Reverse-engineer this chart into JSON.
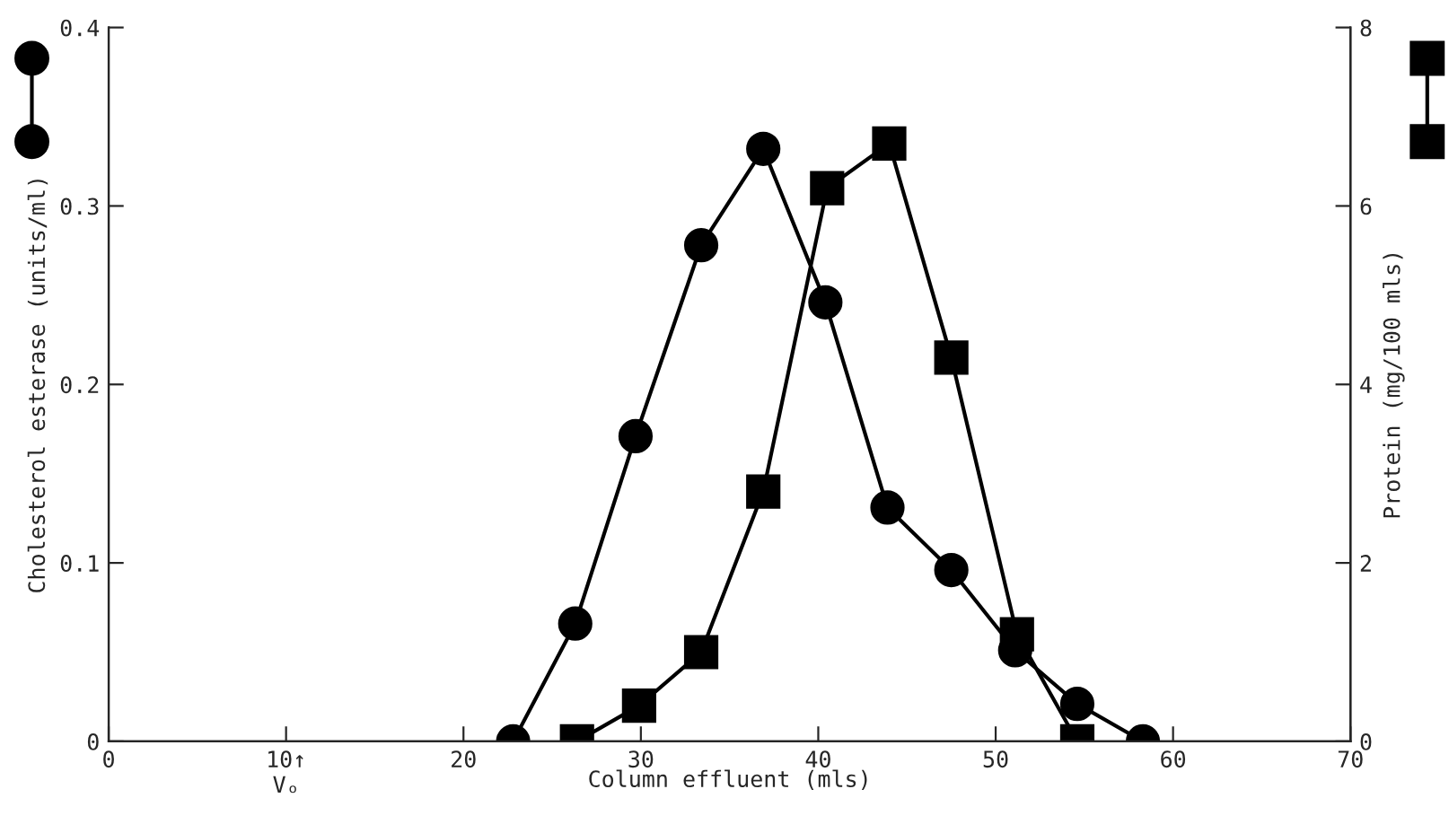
{
  "chart_data": {
    "type": "line",
    "xlabel": "Column effluent (mls)",
    "ylabel": "Cholesterol esterase (units/ml)",
    "y2label": "Protein (mg/100 mls)",
    "series": [
      {
        "color": "#000000",
        "marker": "circle",
        "x": [
          22.8,
          26.3,
          29.7,
          33.4,
          36.9,
          40.4,
          43.9,
          47.5,
          51.1,
          54.6,
          58.3
        ],
        "values": [
          0,
          0.066,
          0.171,
          0.278,
          0.332,
          0.246,
          0.131,
          0.096,
          0.051,
          0.021,
          0
        ]
      },
      {
        "color": "#000000",
        "marker": "square",
        "axis": "y2",
        "x": [
          26.4,
          29.9,
          33.4,
          36.9,
          40.5,
          44.0,
          47.5,
          51.2,
          54.6
        ],
        "values": [
          0,
          0.4,
          1.0,
          2.8,
          6.2,
          6.7,
          4.3,
          1.2,
          0
        ]
      }
    ],
    "xlim": [
      0,
      70
    ],
    "xticks": [
      0,
      {
        "value": 10,
        "label": "10↑\nVₒ"
      },
      20,
      30,
      40,
      50,
      60,
      70
    ],
    "ylim": [
      0,
      0.4
    ],
    "yticks": [
      0,
      0.1,
      0.2,
      0.3,
      0.4
    ],
    "y2lim": [
      0,
      8
    ],
    "y2ticks": [
      0,
      2,
      4,
      6,
      8
    ],
    "grid": false,
    "legend": false,
    "line_style": "solid"
  }
}
